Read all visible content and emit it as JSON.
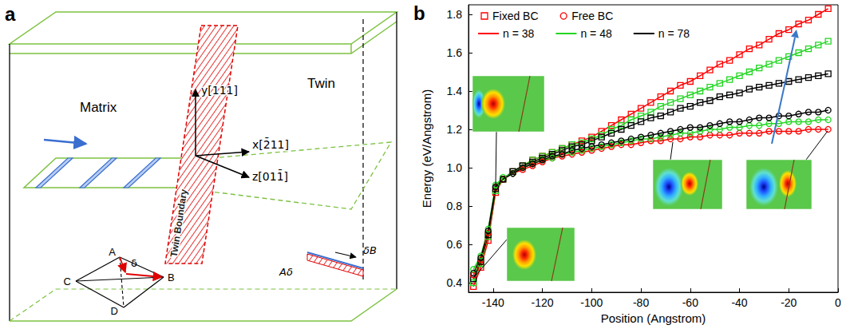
{
  "diagram": {
    "letter": "a",
    "matrix": "Matrix",
    "twin": "Twin",
    "plane": "Twin Boundary",
    "axes": {
      "x": "x[2̄11]",
      "y": "y[111]",
      "z": "z[011̄]"
    },
    "tetrahedron": {
      "vertices": [
        "A",
        "B",
        "C",
        "D"
      ],
      "vector": "δ"
    },
    "partials": [
      "Aδ",
      "δB"
    ]
  },
  "chart_letter": "b",
  "chart_data": {
    "type": "line",
    "x_label": "Position (Angstrom)",
    "y_label": "Energy (eV/Angstrom)",
    "x": [
      -148,
      -145,
      -142,
      -139,
      -136,
      -132,
      -128,
      -124,
      -120,
      -116,
      -112,
      -108,
      -104,
      -100,
      -96,
      -92,
      -88,
      -84,
      -80,
      -76,
      -72,
      -68,
      -64,
      -60,
      -56,
      -52,
      -48,
      -44,
      -40,
      -36,
      -32,
      -28,
      -24,
      -20,
      -16,
      -12,
      -8,
      -4
    ],
    "xlim": [
      -150,
      0
    ],
    "xticks": [
      -140,
      -120,
      -100,
      -80,
      -60,
      -40,
      -20,
      0
    ],
    "ylim": [
      0.35,
      1.85
    ],
    "yticks": [
      0.4,
      0.6,
      0.8,
      {
        "value": 1,
        "label": "1.0"
      },
      1.2,
      1.4,
      1.6,
      1.8
    ],
    "grid": false,
    "legend": "upper left",
    "marker_legend": [
      {
        "name": "Fixed BC",
        "marker": "square",
        "color": "#ff0000"
      },
      {
        "name": "Free BC",
        "marker": "circle",
        "color": "#ff0000"
      }
    ],
    "series": [
      {
        "name": "n = 38",
        "color": "#ff0000",
        "marker": "square",
        "line_style": "solid",
        "values": [
          0.38,
          0.48,
          0.62,
          0.87,
          0.94,
          0.98,
          1.01,
          1.04,
          1.06,
          1.08,
          1.1,
          1.12,
          1.14,
          1.16,
          1.19,
          1.22,
          1.25,
          1.28,
          1.31,
          1.34,
          1.37,
          1.4,
          1.43,
          1.45,
          1.48,
          1.51,
          1.54,
          1.56,
          1.59,
          1.62,
          1.64,
          1.67,
          1.7,
          1.72,
          1.75,
          1.77,
          1.8,
          1.83
        ]
      },
      {
        "name": "n = 48",
        "color": "#22d622",
        "marker": "square",
        "line_style": "solid",
        "values": [
          0.4,
          0.5,
          0.64,
          0.88,
          0.94,
          0.98,
          1.01,
          1.04,
          1.06,
          1.08,
          1.1,
          1.12,
          1.13,
          1.15,
          1.17,
          1.2,
          1.22,
          1.25,
          1.27,
          1.29,
          1.32,
          1.34,
          1.36,
          1.38,
          1.4,
          1.42,
          1.44,
          1.46,
          1.48,
          1.5,
          1.52,
          1.54,
          1.56,
          1.58,
          1.6,
          1.62,
          1.64,
          1.66
        ]
      },
      {
        "name": "n = 78",
        "color": "#000000",
        "marker": "square",
        "line_style": "solid",
        "values": [
          0.42,
          0.51,
          0.65,
          0.89,
          0.94,
          0.98,
          1.01,
          1.03,
          1.05,
          1.07,
          1.09,
          1.11,
          1.12,
          1.14,
          1.16,
          1.18,
          1.2,
          1.22,
          1.24,
          1.26,
          1.27,
          1.29,
          1.31,
          1.32,
          1.34,
          1.35,
          1.37,
          1.38,
          1.39,
          1.41,
          1.42,
          1.43,
          1.44,
          1.45,
          1.46,
          1.47,
          1.48,
          1.49
        ]
      },
      {
        "name": "n = 38",
        "color": "#ff0000",
        "marker": "circle",
        "line_style": "solid",
        "values": [
          0.44,
          0.52,
          0.66,
          0.9,
          0.94,
          0.97,
          0.99,
          1.01,
          1.03,
          1.05,
          1.06,
          1.07,
          1.08,
          1.09,
          1.1,
          1.11,
          1.12,
          1.12,
          1.13,
          1.14,
          1.14,
          1.15,
          1.15,
          1.16,
          1.16,
          1.17,
          1.17,
          1.17,
          1.18,
          1.18,
          1.18,
          1.19,
          1.19,
          1.19,
          1.19,
          1.2,
          1.2,
          1.2
        ]
      },
      {
        "name": "n = 48",
        "color": "#22d622",
        "marker": "circle",
        "line_style": "solid",
        "values": [
          0.47,
          0.54,
          0.68,
          0.91,
          0.95,
          0.97,
          1.0,
          1.02,
          1.04,
          1.05,
          1.07,
          1.08,
          1.09,
          1.1,
          1.11,
          1.12,
          1.13,
          1.14,
          1.15,
          1.15,
          1.16,
          1.17,
          1.18,
          1.18,
          1.19,
          1.2,
          1.2,
          1.21,
          1.21,
          1.22,
          1.22,
          1.23,
          1.23,
          1.24,
          1.24,
          1.24,
          1.25,
          1.25
        ]
      },
      {
        "name": "n = 78",
        "color": "#000000",
        "marker": "circle",
        "line_style": "solid",
        "values": [
          0.45,
          0.53,
          0.67,
          0.9,
          0.94,
          0.97,
          1.0,
          1.02,
          1.04,
          1.06,
          1.07,
          1.09,
          1.1,
          1.11,
          1.12,
          1.13,
          1.14,
          1.15,
          1.16,
          1.17,
          1.18,
          1.19,
          1.2,
          1.21,
          1.21,
          1.22,
          1.23,
          1.24,
          1.24,
          1.25,
          1.26,
          1.26,
          1.27,
          1.27,
          1.28,
          1.29,
          1.29,
          1.3
        ]
      }
    ]
  }
}
